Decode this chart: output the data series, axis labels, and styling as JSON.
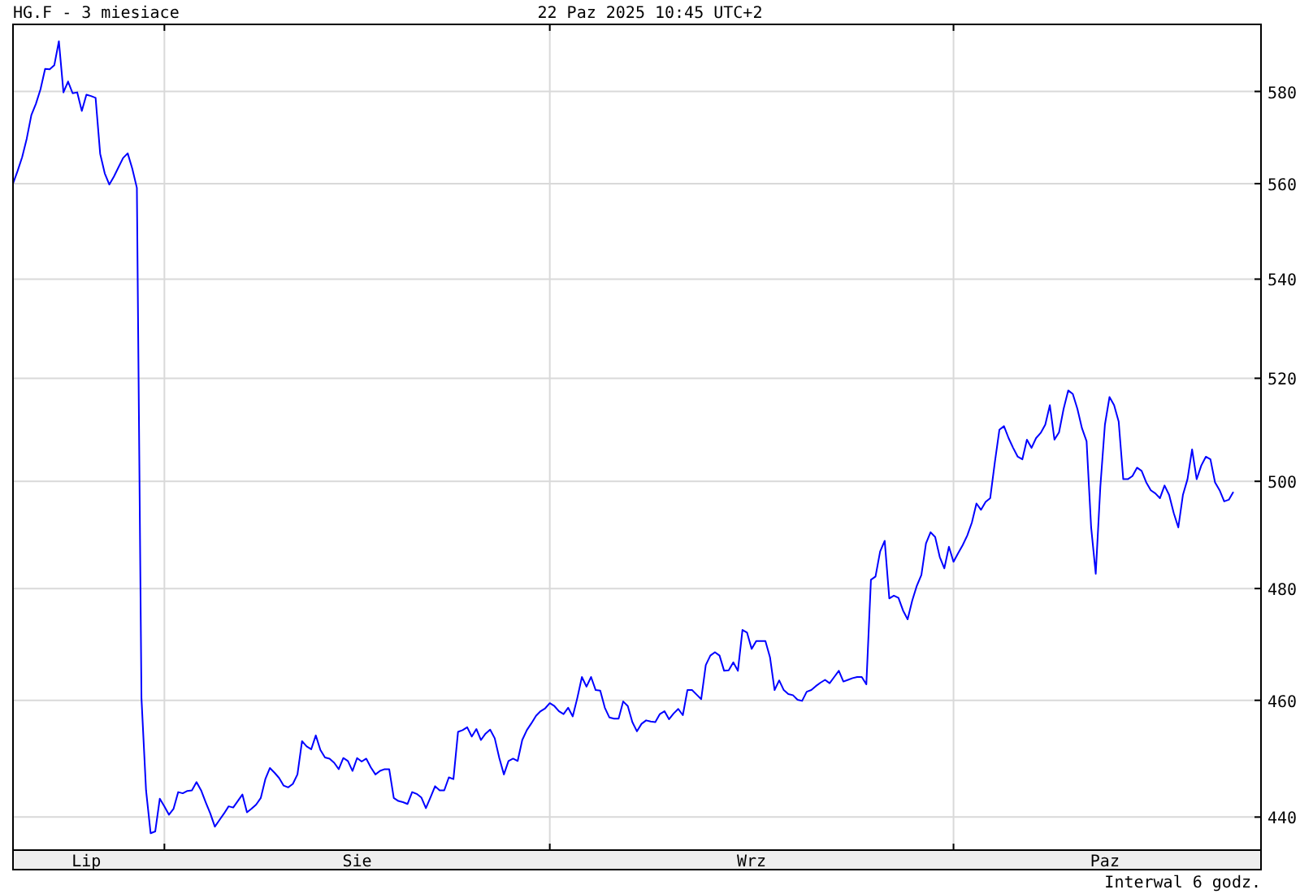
{
  "chart_data": {
    "type": "line",
    "title": "HG.F - 3 miesiace",
    "subtitle": "22 Paz 2025 10:45 UTC+2",
    "annotations": [
      "Interwal 6 godz."
    ],
    "categories": [
      null,
      null,
      null,
      null,
      null,
      null,
      null,
      null,
      null,
      null,
      null,
      null,
      null,
      null,
      null,
      null,
      "Lip",
      null,
      null,
      null,
      null,
      null,
      null,
      null,
      null,
      null,
      null,
      null,
      null,
      null,
      null,
      null,
      null,
      null,
      null,
      null,
      null,
      null,
      null,
      null,
      null,
      null,
      null,
      null,
      null,
      null,
      null,
      null,
      null,
      null,
      null,
      null,
      null,
      null,
      null,
      null,
      null,
      null,
      null,
      null,
      null,
      null,
      null,
      null,
      null,
      null,
      null,
      null,
      null,
      null,
      null,
      null,
      null,
      null,
      null,
      "Sie",
      null,
      null,
      null,
      null,
      null,
      null,
      null,
      null,
      null,
      null,
      null,
      null,
      null,
      null,
      null,
      null,
      null,
      null,
      null,
      null,
      null,
      null,
      null,
      null,
      null,
      null,
      null,
      null,
      null,
      null,
      null,
      null,
      null,
      null,
      null,
      null,
      null,
      null,
      null,
      null,
      null,
      null,
      null,
      null,
      null,
      null,
      null,
      null,
      null,
      null,
      null,
      null,
      null,
      null,
      null,
      null,
      null,
      null,
      null,
      null,
      null,
      null,
      null,
      null,
      null,
      null,
      null,
      null,
      null,
      null,
      null,
      null,
      null,
      null,
      null,
      null,
      null,
      null,
      null,
      null,
      null,
      null,
      null,
      null,
      null,
      "Wrz",
      null,
      null,
      null,
      null,
      null,
      null,
      null,
      null,
      null,
      null,
      null,
      null,
      null,
      null,
      null,
      null,
      null,
      null,
      null,
      null,
      null,
      null,
      null,
      null,
      null,
      null,
      null,
      null,
      null,
      null,
      null,
      null,
      null,
      null,
      null,
      null,
      null,
      null,
      null,
      null,
      null,
      null,
      null,
      null,
      null,
      null,
      null,
      null,
      null,
      null,
      null,
      null,
      null,
      null,
      null,
      null,
      null,
      null,
      null,
      null,
      null,
      null,
      null,
      null,
      null,
      null,
      null,
      null,
      null,
      null,
      null,
      null,
      null,
      null,
      null,
      null,
      "Paz",
      null,
      null,
      null,
      null,
      null,
      null,
      null,
      null,
      null,
      null,
      null,
      null,
      null,
      null,
      null,
      null,
      null,
      null,
      null,
      null,
      null,
      null,
      null,
      null,
      null,
      null,
      null,
      null
    ],
    "series": [
      {
        "color": "#0000ff",
        "values": [
          560.0,
          562.7,
          565.7,
          569.7,
          574.8,
          577.3,
          580.5,
          585.0,
          584.9,
          585.8,
          591.2,
          579.8,
          582.2,
          579.6,
          579.8,
          575.7,
          579.3,
          579.0,
          578.6,
          566.4,
          562.2,
          559.8,
          561.5,
          563.5,
          565.5,
          566.5,
          563.2,
          559.1,
          460.4,
          444.5,
          437.3,
          437.6,
          443.1,
          441.8,
          440.4,
          441.4,
          444.2,
          444.0,
          444.4,
          444.5,
          445.9,
          444.5,
          442.5,
          440.6,
          438.4,
          439.5,
          440.6,
          441.8,
          441.6,
          442.7,
          443.8,
          440.8,
          441.4,
          442.1,
          443.2,
          446.4,
          448.3,
          447.5,
          446.6,
          445.3,
          445.0,
          445.6,
          447.2,
          452.9,
          452.0,
          451.5,
          453.9,
          451.4,
          450.1,
          449.9,
          449.2,
          448.1,
          450.0,
          449.5,
          447.8,
          450.0,
          449.4,
          449.9,
          448.4,
          447.2,
          447.8,
          448.1,
          448.1,
          443.2,
          442.7,
          442.5,
          442.2,
          444.2,
          443.9,
          443.3,
          441.5,
          443.3,
          445.2,
          444.5,
          444.5,
          446.7,
          446.4,
          454.5,
          454.8,
          455.3,
          453.7,
          455.0,
          453.1,
          454.2,
          454.9,
          453.4,
          450.0,
          447.2,
          449.5,
          449.9,
          449.5,
          453.1,
          454.8,
          456.0,
          457.3,
          458.1,
          458.6,
          459.5,
          459.0,
          458.1,
          457.6,
          458.7,
          457.2,
          460.4,
          464.1,
          462.4,
          464.1,
          461.8,
          461.7,
          458.7,
          457.0,
          456.8,
          456.8,
          459.8,
          459.0,
          456.2,
          454.6,
          455.9,
          456.5,
          456.3,
          456.2,
          457.6,
          458.1,
          456.7,
          457.7,
          458.5,
          457.4,
          461.8,
          461.8,
          461.0,
          460.2,
          466.2,
          467.9,
          468.5,
          467.9,
          465.2,
          465.3,
          466.7,
          465.2,
          472.5,
          472.0,
          469.1,
          470.5,
          470.5,
          470.5,
          467.6,
          461.8,
          463.5,
          461.8,
          461.1,
          460.9,
          460.1,
          459.9,
          461.5,
          461.8,
          462.5,
          463.1,
          463.6,
          463.0,
          464.1,
          465.2,
          463.3,
          463.6,
          463.9,
          464.1,
          464.1,
          462.8,
          481.6,
          482.2,
          486.8,
          488.8,
          478.2,
          478.7,
          478.3,
          476.0,
          474.4,
          477.8,
          480.5,
          482.5,
          488.3,
          490.4,
          489.5,
          485.8,
          483.7,
          487.7,
          484.9,
          486.5,
          488.0,
          489.8,
          492.2,
          495.8,
          494.6,
          496.1,
          496.8,
          503.6,
          509.9,
          510.6,
          508.3,
          506.4,
          504.7,
          504.2,
          508.0,
          506.4,
          508.3,
          509.3,
          510.9,
          514.7,
          508.0,
          509.4,
          514.0,
          517.6,
          516.9,
          514.0,
          510.2,
          507.7,
          491.3,
          482.7,
          498.9,
          510.9,
          516.3,
          514.7,
          511.5,
          500.4,
          500.4,
          501.0,
          502.6,
          502.0,
          499.8,
          498.3,
          497.7,
          496.8,
          499.2,
          497.4,
          494.0,
          491.3,
          497.4,
          500.4,
          506.1,
          500.4,
          503.0,
          504.7,
          504.2,
          499.8,
          498.3,
          496.2,
          496.5,
          498.0
        ]
      }
    ],
    "ylim": [
      434.5,
      595
    ],
    "yticks": [
      440,
      460,
      480,
      500,
      520,
      540,
      560,
      580
    ],
    "log": true,
    "grid": "y"
  }
}
